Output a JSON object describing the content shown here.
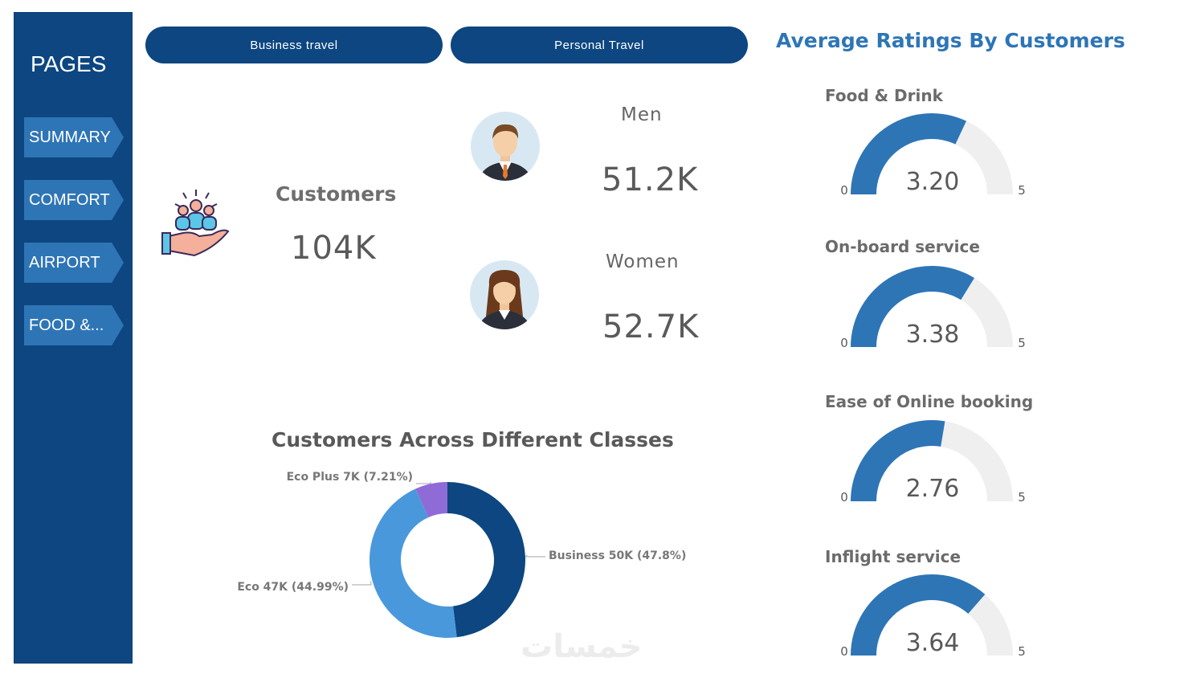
{
  "sidebar": {
    "title": "PAGES",
    "items": [
      {
        "label": "SUMMARY"
      },
      {
        "label": "COMFORT"
      },
      {
        "label": "AIRPORT"
      },
      {
        "label": "FOOD &..."
      }
    ]
  },
  "filters": {
    "business_label": "Business travel",
    "personal_label": "Personal Travel"
  },
  "customers": {
    "label": "Customers",
    "value": "104K"
  },
  "men": {
    "label": "Men",
    "value": "51.2K"
  },
  "women": {
    "label": "Women",
    "value": "52.7K"
  },
  "ratings": {
    "title": "Average Ratings By Customers",
    "min_label": "0",
    "max_label": "5",
    "gauges": [
      {
        "title": "Food & Drink",
        "value": 3.2,
        "display": "3.20"
      },
      {
        "title": "On-board service",
        "value": 3.38,
        "display": "3.38"
      },
      {
        "title": "Ease of Online booking",
        "value": 2.76,
        "display": "2.76"
      },
      {
        "title": "Inflight service",
        "value": 3.64,
        "display": "3.64"
      }
    ],
    "fill_color": "#2e75b6",
    "track_color": "#efefef"
  },
  "chart_data": {
    "type": "pie",
    "title": "Customers Across Different Classes",
    "donut": true,
    "slices": [
      {
        "name": "Business",
        "value": 50,
        "percent": 47.8,
        "label": "Business 50K (47.8%)",
        "color": "#0d4680"
      },
      {
        "name": "Eco",
        "value": 47,
        "percent": 44.99,
        "label": "Eco 47K (44.99%)",
        "color": "#4a98dc"
      },
      {
        "name": "Eco Plus",
        "value": 7,
        "percent": 7.21,
        "label": "Eco Plus 7K (7.21%)",
        "color": "#8f6bd8"
      }
    ]
  },
  "watermark": "خمسات"
}
